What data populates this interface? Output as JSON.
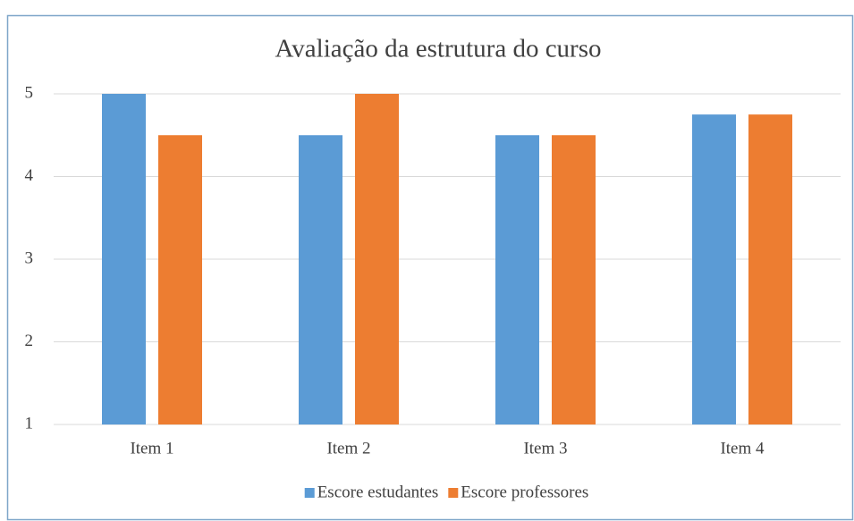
{
  "chart_data": {
    "type": "bar",
    "title": "Avaliação da estrutura do curso",
    "categories": [
      "Item 1",
      "Item 2",
      "Item 3",
      "Item 4"
    ],
    "series": [
      {
        "name": "Escore estudantes",
        "color": "#5b9bd5",
        "values": [
          5,
          4.5,
          4.5,
          4.75
        ]
      },
      {
        "name": "Escore professores",
        "color": "#ed7d31",
        "values": [
          4.5,
          5,
          4.5,
          4.75
        ]
      }
    ],
    "ylim": [
      1,
      5
    ],
    "yticks": [
      1,
      2,
      3,
      4,
      5
    ],
    "grid": true,
    "legend": "bottom"
  }
}
